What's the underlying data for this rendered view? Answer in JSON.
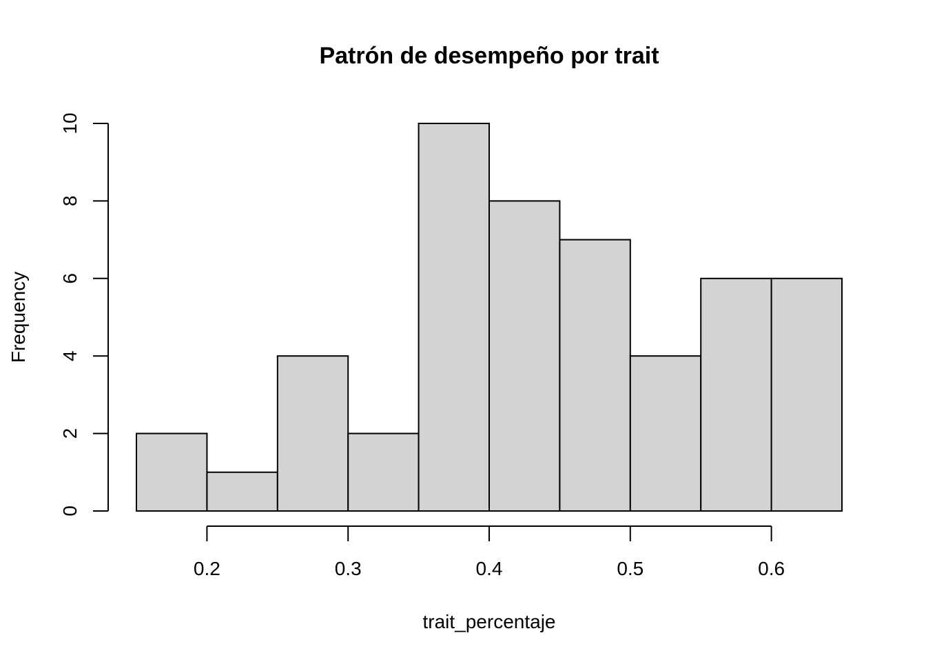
{
  "chart_data": {
    "type": "bar",
    "title": "Patrón de desempeño por trait",
    "xlabel": "trait_percentaje",
    "ylabel": "Frequency",
    "bins": [
      {
        "from": 0.15,
        "to": 0.2,
        "count": 2
      },
      {
        "from": 0.2,
        "to": 0.25,
        "count": 1
      },
      {
        "from": 0.25,
        "to": 0.3,
        "count": 4
      },
      {
        "from": 0.3,
        "to": 0.35,
        "count": 2
      },
      {
        "from": 0.35,
        "to": 0.4,
        "count": 10
      },
      {
        "from": 0.4,
        "to": 0.45,
        "count": 8
      },
      {
        "from": 0.45,
        "to": 0.5,
        "count": 7
      },
      {
        "from": 0.5,
        "to": 0.55,
        "count": 4
      },
      {
        "from": 0.55,
        "to": 0.6,
        "count": 6
      },
      {
        "from": 0.6,
        "to": 0.65,
        "count": 6
      }
    ],
    "x_ticks": [
      {
        "value": 0.2,
        "label": "0.2"
      },
      {
        "value": 0.3,
        "label": "0.3"
      },
      {
        "value": 0.4,
        "label": "0.4"
      },
      {
        "value": 0.5,
        "label": "0.5"
      },
      {
        "value": 0.6,
        "label": "0.6"
      }
    ],
    "y_ticks": [
      {
        "value": 0,
        "label": "0"
      },
      {
        "value": 2,
        "label": "2"
      },
      {
        "value": 4,
        "label": "4"
      },
      {
        "value": 6,
        "label": "6"
      },
      {
        "value": 8,
        "label": "8"
      },
      {
        "value": 10,
        "label": "10"
      }
    ],
    "xlim": [
      0.15,
      0.65
    ],
    "ylim": [
      0,
      10
    ],
    "grid": false,
    "legend": "none",
    "bar_fill": "#d3d3d3",
    "bar_stroke": "#000000"
  }
}
